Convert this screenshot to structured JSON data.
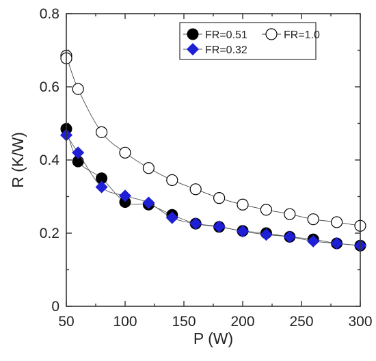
{
  "chart_data": {
    "type": "scatter",
    "title": "",
    "xlabel": "P (W)",
    "ylabel": "R (K/W)",
    "xlim": [
      50,
      300
    ],
    "ylim": [
      0,
      0.8
    ],
    "x_ticks": [
      "50",
      "100",
      "150",
      "200",
      "250",
      "300"
    ],
    "y_ticks": [
      "0",
      "0.2",
      "0.4",
      "0.6",
      "0.8"
    ],
    "x_tick_values": [
      50,
      100,
      150,
      200,
      250,
      300
    ],
    "y_tick_values": [
      0,
      0.2,
      0.4,
      0.6,
      0.8
    ],
    "grid": false,
    "legend_position": "top-right",
    "series": [
      {
        "name": "FR=0.51",
        "marker": "filled-circle",
        "color": "#000000",
        "line_color": "#555555",
        "x": [
          50,
          60,
          80,
          100,
          120,
          140,
          160,
          180,
          200,
          220,
          240,
          260,
          280,
          300
        ],
        "y": [
          0.485,
          0.396,
          0.35,
          0.285,
          0.278,
          0.25,
          0.226,
          0.217,
          0.206,
          0.2,
          0.19,
          0.183,
          0.172,
          0.166
        ]
      },
      {
        "name": "FR=1.0",
        "marker": "open-circle",
        "color": "#000000",
        "line_color": "#444444",
        "x": [
          50,
          50,
          60,
          80,
          100,
          120,
          140,
          160,
          180,
          200,
          220,
          240,
          260,
          280,
          300
        ],
        "y": [
          0.685,
          0.678,
          0.594,
          0.476,
          0.42,
          0.378,
          0.345,
          0.32,
          0.296,
          0.278,
          0.264,
          0.252,
          0.238,
          0.23,
          0.22
        ]
      },
      {
        "name": "FR=0.32",
        "marker": "filled-diamond",
        "color": "#1f1fd6",
        "line_color": "#555555",
        "x": [
          50,
          60,
          80,
          100,
          120,
          140,
          160,
          180,
          200,
          220,
          240,
          260,
          280,
          300
        ],
        "y": [
          0.468,
          0.42,
          0.326,
          0.302,
          0.283,
          0.242,
          0.226,
          0.218,
          0.205,
          0.196,
          0.19,
          0.178,
          0.172,
          0.166
        ]
      }
    ]
  }
}
